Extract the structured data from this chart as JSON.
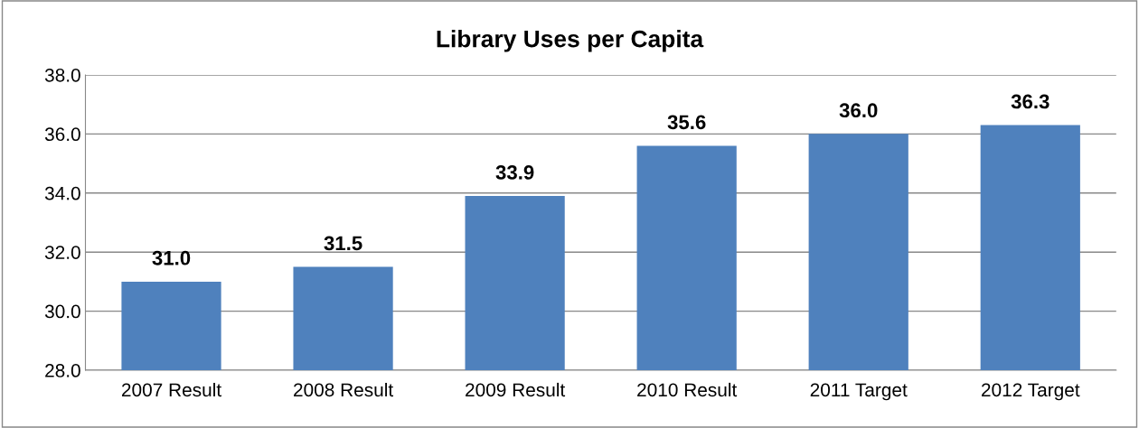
{
  "chart_data": {
    "type": "bar",
    "title": "Library Uses per Capita",
    "categories": [
      "2007 Result",
      "2008 Result",
      "2009 Result",
      "2010 Result",
      "2011 Target",
      "2012 Target"
    ],
    "values": [
      31.0,
      31.5,
      33.9,
      35.6,
      36.0,
      36.3
    ],
    "color": "#4f81bd",
    "ylim": [
      28,
      38
    ],
    "yticks": [
      {
        "value": 28,
        "label": "28.0"
      },
      {
        "value": 30,
        "label": "30.0"
      },
      {
        "value": 32,
        "label": "32.0"
      },
      {
        "value": 34,
        "label": "34.0"
      },
      {
        "value": 36,
        "label": "36.0"
      },
      {
        "value": 38,
        "label": "38.0"
      }
    ],
    "value_labels": [
      "31.0",
      "31.5",
      "33.9",
      "35.6",
      "36.0",
      "36.3"
    ],
    "grid": "y",
    "legend": false
  }
}
